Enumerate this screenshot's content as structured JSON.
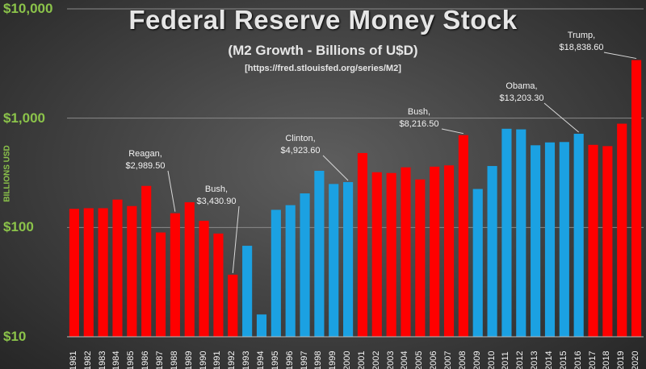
{
  "chart_data": {
    "type": "bar",
    "title": "Federal Reserve Money Stock",
    "subtitle": "(M2 Growth - Billions of U$D)",
    "source": "[https://fred.stlouisfed.org/series/M2]",
    "xlabel": "",
    "ylabel": "BILLIONS USD",
    "yscale": "log",
    "ylim": [
      10,
      10000
    ],
    "y_ticks": [
      {
        "value": 10,
        "label": "$10"
      },
      {
        "value": 100,
        "label": "$100"
      },
      {
        "value": 1000,
        "label": "$1,000"
      },
      {
        "value": 10000,
        "label": "$10,000"
      }
    ],
    "categories": [
      "1981",
      "1982",
      "1983",
      "1984",
      "1985",
      "1986",
      "1987",
      "1988",
      "1989",
      "1990",
      "1991",
      "1992",
      "1993",
      "1994",
      "1995",
      "1996",
      "1997",
      "1998",
      "1999",
      "2000",
      "2001",
      "2002",
      "2003",
      "2004",
      "2005",
      "2006",
      "2007",
      "2008",
      "2009",
      "2010",
      "2011",
      "2012",
      "2013",
      "2014",
      "2015",
      "2016",
      "2017",
      "2018",
      "2019",
      "2020"
    ],
    "values": [
      148,
      150,
      150,
      180,
      157,
      240,
      90,
      135,
      170,
      115,
      88,
      37,
      68,
      16,
      145,
      160,
      205,
      330,
      250,
      260,
      480,
      320,
      315,
      355,
      275,
      360,
      370,
      700,
      225,
      365,
      800,
      790,
      565,
      600,
      605,
      720,
      570,
      555,
      890,
      3400
    ],
    "party": [
      "R",
      "R",
      "R",
      "R",
      "R",
      "R",
      "R",
      "R",
      "R",
      "R",
      "R",
      "R",
      "D",
      "D",
      "D",
      "D",
      "D",
      "D",
      "D",
      "D",
      "R",
      "R",
      "R",
      "R",
      "R",
      "R",
      "R",
      "R",
      "D",
      "D",
      "D",
      "D",
      "D",
      "D",
      "D",
      "D",
      "R",
      "R",
      "R",
      "R"
    ],
    "colors": {
      "R": "#ff0000",
      "D": "#1ba1e2"
    },
    "annotations": [
      {
        "name": "Reagan",
        "total": "$2,989.50",
        "year": "1988"
      },
      {
        "name": "Bush",
        "total": "$3,430.90",
        "year": "1992"
      },
      {
        "name": "Clinton",
        "total": "$4,923.60",
        "year": "2000"
      },
      {
        "name": "Bush",
        "total": "$8,216.50",
        "year": "2008"
      },
      {
        "name": "Obama",
        "total": "$13,203.30",
        "year": "2016"
      },
      {
        "name": "Trump",
        "total": "$18,838.60",
        "year": "2020"
      }
    ]
  }
}
